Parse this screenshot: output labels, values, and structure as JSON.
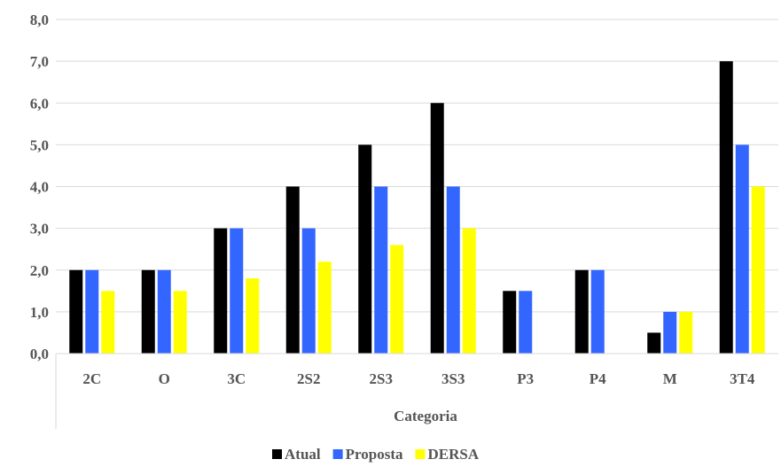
{
  "chart_data": {
    "type": "bar",
    "categories": [
      "2C",
      "O",
      "3C",
      "2S2",
      "2S3",
      "3S3",
      "P3",
      "P4",
      "M",
      "3T4"
    ],
    "series": [
      {
        "name": "Atual",
        "color": "#000000",
        "values": [
          2,
          2,
          3,
          4,
          5,
          6,
          1.5,
          2,
          0.5,
          7
        ]
      },
      {
        "name": "Proposta",
        "color": "#3366ff",
        "values": [
          2,
          2,
          3,
          3,
          4,
          4,
          1.5,
          2,
          1,
          5
        ]
      },
      {
        "name": "DERSA",
        "color": "#ffff00",
        "values": [
          1.5,
          1.5,
          1.8,
          2.2,
          2.6,
          3,
          null,
          null,
          1,
          4
        ]
      }
    ],
    "yticks": [
      "0,0",
      "1,0",
      "2,0",
      "3,0",
      "4,0",
      "5,0",
      "6,0",
      "7,0",
      "8,0"
    ],
    "ylim": [
      0,
      8
    ],
    "xlabel": "Categoria",
    "ylabel": "",
    "title": "",
    "grid": true,
    "legend_position": "bottom"
  }
}
